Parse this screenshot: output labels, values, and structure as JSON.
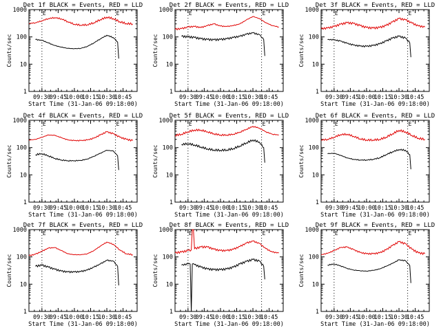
{
  "chart_data": [
    {
      "type": "line",
      "title": "Det 1f BLACK = Events, RED = LLD",
      "xlabel": "Start Time (31-Jan-06 09:18:00)",
      "ylabel": "Counts/sec",
      "y_scale": "log",
      "ylim": [
        1,
        1000
      ],
      "yticks": [
        "1",
        "10",
        "100",
        "1000"
      ],
      "xticks": [
        "09:30",
        "09:45",
        "10:00",
        "10:15",
        "10:30",
        "10:45"
      ],
      "marker_labels": [
        "E",
        "E"
      ],
      "series": [
        {
          "name": "LLD",
          "color": "#e00000",
          "x": [
            "09:18",
            "09:24",
            "09:30",
            "09:36",
            "09:42",
            "09:48",
            "09:54",
            "10:00",
            "10:06",
            "10:12",
            "10:18",
            "10:24",
            "10:30",
            "10:36",
            "10:42",
            "10:48",
            "10:54"
          ],
          "values": [
            310,
            330,
            390,
            470,
            510,
            460,
            360,
            290,
            270,
            280,
            330,
            430,
            530,
            470,
            360,
            310,
            300
          ]
        },
        {
          "name": "Events",
          "color": "#000000",
          "x": [
            "09:24",
            "09:30",
            "09:36",
            "09:42",
            "09:48",
            "09:54",
            "10:00",
            "10:06",
            "10:12",
            "10:18",
            "10:24",
            "10:30",
            "10:36",
            "10:40",
            "10:41"
          ],
          "values": [
            80,
            75,
            60,
            48,
            42,
            38,
            37,
            38,
            45,
            60,
            85,
            115,
            95,
            65,
            16
          ]
        }
      ],
      "vlines": [
        "09:30",
        "10:38"
      ]
    },
    {
      "type": "line",
      "title": "Det 2f BLACK = Events, RED = LLD",
      "xlabel": "Start Time (31-Jan-06 09:18:00)",
      "ylabel": "Counts/sec",
      "y_scale": "log",
      "ylim": [
        1,
        1000
      ],
      "yticks": [
        "1",
        "10",
        "100",
        "1000"
      ],
      "xticks": [
        "09:30",
        "09:45",
        "10:00",
        "10:15",
        "10:30",
        "10:45"
      ],
      "marker_labels": [
        "E",
        "E"
      ],
      "series": [
        {
          "name": "LLD",
          "color": "#e00000",
          "x": [
            "09:18",
            "09:24",
            "09:30",
            "09:36",
            "09:42",
            "09:48",
            "09:54",
            "10:00",
            "10:06",
            "10:12",
            "10:18",
            "10:24",
            "10:30",
            "10:36",
            "10:42",
            "10:48",
            "10:54"
          ],
          "values": [
            190,
            200,
            230,
            240,
            220,
            260,
            300,
            250,
            240,
            260,
            300,
            420,
            560,
            470,
            330,
            260,
            230
          ]
        },
        {
          "name": "Events",
          "color": "#000000",
          "x": [
            "09:24",
            "09:30",
            "09:36",
            "09:42",
            "09:48",
            "09:54",
            "10:00",
            "10:06",
            "10:12",
            "10:18",
            "10:24",
            "10:30",
            "10:36",
            "10:40",
            "10:41"
          ],
          "values": [
            105,
            100,
            95,
            85,
            80,
            78,
            80,
            85,
            95,
            105,
            125,
            140,
            120,
            80,
            20
          ]
        }
      ],
      "vlines": [
        "09:30",
        "10:38"
      ]
    },
    {
      "type": "line",
      "title": "Det 3f BLACK = Events, RED = LLD",
      "xlabel": "Start Time (31-Jan-06 09:18:00)",
      "ylabel": "Counts/sec",
      "y_scale": "log",
      "ylim": [
        1,
        1000
      ],
      "yticks": [
        "1",
        "10",
        "100",
        "1000"
      ],
      "xticks": [
        "09:30",
        "09:45",
        "10:00",
        "10:15",
        "10:30",
        "10:45"
      ],
      "marker_labels": [
        "E",
        "E"
      ],
      "series": [
        {
          "name": "LLD",
          "color": "#e00000",
          "x": [
            "09:18",
            "09:24",
            "09:30",
            "09:36",
            "09:42",
            "09:48",
            "09:54",
            "10:00",
            "10:06",
            "10:12",
            "10:18",
            "10:24",
            "10:30",
            "10:36",
            "10:42",
            "10:48",
            "10:54"
          ],
          "values": [
            200,
            210,
            240,
            290,
            330,
            310,
            260,
            220,
            210,
            220,
            260,
            350,
            470,
            420,
            320,
            250,
            230
          ]
        },
        {
          "name": "Events",
          "color": "#000000",
          "x": [
            "09:24",
            "09:30",
            "09:36",
            "09:42",
            "09:48",
            "09:54",
            "10:00",
            "10:06",
            "10:12",
            "10:18",
            "10:24",
            "10:30",
            "10:36",
            "10:40",
            "10:41"
          ],
          "values": [
            80,
            78,
            70,
            58,
            50,
            46,
            45,
            48,
            55,
            70,
            90,
            105,
            90,
            60,
            18
          ]
        }
      ],
      "vlines": [
        "09:30",
        "10:38"
      ]
    },
    {
      "type": "line",
      "title": "Det 4f BLACK = Events, RED = LLD",
      "xlabel": "Start Time (31-Jan-06 09:18:00)",
      "ylabel": "Counts/sec",
      "y_scale": "log",
      "ylim": [
        1,
        1000
      ],
      "yticks": [
        "1",
        "10",
        "100",
        "1000"
      ],
      "xticks": [
        "09:30",
        "09:45",
        "10:00",
        "10:15",
        "10:30",
        "10:45"
      ],
      "marker_labels": [
        "E",
        "E"
      ],
      "series": [
        {
          "name": "LLD",
          "color": "#e00000",
          "x": [
            "09:18",
            "09:24",
            "09:30",
            "09:36",
            "09:42",
            "09:48",
            "09:54",
            "10:00",
            "10:06",
            "10:12",
            "10:18",
            "10:24",
            "10:30",
            "10:36",
            "10:42",
            "10:48",
            "10:54"
          ],
          "values": [
            190,
            200,
            240,
            290,
            280,
            230,
            190,
            180,
            180,
            190,
            220,
            290,
            380,
            320,
            240,
            200,
            180
          ]
        },
        {
          "name": "Events",
          "color": "#000000",
          "x": [
            "09:24",
            "09:30",
            "09:36",
            "09:42",
            "09:48",
            "09:54",
            "10:00",
            "10:06",
            "10:12",
            "10:18",
            "10:24",
            "10:30",
            "10:36",
            "10:40",
            "10:41"
          ],
          "values": [
            55,
            60,
            50,
            40,
            35,
            33,
            33,
            34,
            38,
            48,
            62,
            80,
            75,
            50,
            15
          ]
        }
      ],
      "vlines": [
        "09:30",
        "10:38"
      ]
    },
    {
      "type": "line",
      "title": "Det 5f BLACK = Events, RED = LLD",
      "xlabel": "Start Time (31-Jan-06 09:18:00)",
      "ylabel": "Counts/sec",
      "y_scale": "log",
      "ylim": [
        1,
        1000
      ],
      "yticks": [
        "1",
        "10",
        "100",
        "1000"
      ],
      "xticks": [
        "09:30",
        "09:45",
        "10:00",
        "10:15",
        "10:30",
        "10:45"
      ],
      "marker_labels": [
        "E",
        "E"
      ],
      "series": [
        {
          "name": "LLD",
          "color": "#e00000",
          "x": [
            "09:18",
            "09:24",
            "09:30",
            "09:36",
            "09:42",
            "09:48",
            "09:54",
            "10:00",
            "10:06",
            "10:12",
            "10:18",
            "10:24",
            "10:30",
            "10:36",
            "10:42",
            "10:48",
            "10:54"
          ],
          "values": [
            280,
            310,
            380,
            440,
            440,
            380,
            320,
            290,
            290,
            310,
            370,
            470,
            600,
            520,
            380,
            310,
            290
          ]
        },
        {
          "name": "Events",
          "color": "#000000",
          "x": [
            "09:24",
            "09:30",
            "09:36",
            "09:42",
            "09:48",
            "09:54",
            "10:00",
            "10:06",
            "10:12",
            "10:18",
            "10:24",
            "10:30",
            "10:36",
            "10:40",
            "10:41"
          ],
          "values": [
            130,
            140,
            125,
            105,
            90,
            82,
            80,
            82,
            92,
            115,
            150,
            190,
            160,
            100,
            28
          ]
        }
      ],
      "vlines": [
        "09:30",
        "10:38"
      ]
    },
    {
      "type": "line",
      "title": "Det 6f BLACK = Events, RED = LLD",
      "xlabel": "Start Time (31-Jan-06 09:18:00)",
      "ylabel": "Counts/sec",
      "y_scale": "log",
      "ylim": [
        1,
        1000
      ],
      "yticks": [
        "1",
        "10",
        "100",
        "1000"
      ],
      "xticks": [
        "09:30",
        "09:45",
        "10:00",
        "10:15",
        "10:30",
        "10:45"
      ],
      "marker_labels": [
        "E",
        "E"
      ],
      "series": [
        {
          "name": "LLD",
          "color": "#e00000",
          "x": [
            "09:18",
            "09:24",
            "09:30",
            "09:36",
            "09:42",
            "09:48",
            "09:54",
            "10:00",
            "10:06",
            "10:12",
            "10:18",
            "10:24",
            "10:30",
            "10:36",
            "10:42",
            "10:48",
            "10:54"
          ],
          "values": [
            190,
            200,
            240,
            300,
            310,
            260,
            210,
            190,
            190,
            200,
            240,
            320,
            430,
            380,
            280,
            220,
            200
          ]
        },
        {
          "name": "Events",
          "color": "#000000",
          "x": [
            "09:24",
            "09:30",
            "09:36",
            "09:42",
            "09:48",
            "09:54",
            "10:00",
            "10:06",
            "10:12",
            "10:18",
            "10:24",
            "10:30",
            "10:36",
            "10:40",
            "10:41"
          ],
          "values": [
            60,
            62,
            52,
            42,
            37,
            35,
            35,
            37,
            42,
            55,
            70,
            85,
            80,
            55,
            16
          ]
        }
      ],
      "vlines": [
        "09:30",
        "10:38"
      ]
    },
    {
      "type": "line",
      "title": "Det 7f BLACK = Events, RED = LLD",
      "xlabel": "Start Time (31-Jan-06 09:18:00)",
      "ylabel": "Counts/sec",
      "y_scale": "log",
      "ylim": [
        1,
        1000
      ],
      "yticks": [
        "1",
        "10",
        "100",
        "1000"
      ],
      "xticks": [
        "09:30",
        "09:45",
        "10:00",
        "10:15",
        "10:30",
        "10:45"
      ],
      "marker_labels": [
        "E",
        "E"
      ],
      "series": [
        {
          "name": "LLD",
          "color": "#e00000",
          "x": [
            "09:18",
            "09:24",
            "09:30",
            "09:36",
            "09:42",
            "09:48",
            "09:54",
            "10:00",
            "10:06",
            "10:12",
            "10:18",
            "10:24",
            "10:30",
            "10:36",
            "10:42",
            "10:48",
            "10:54"
          ],
          "values": [
            110,
            125,
            160,
            210,
            220,
            170,
            130,
            120,
            120,
            130,
            170,
            250,
            350,
            290,
            180,
            130,
            120
          ]
        },
        {
          "name": "Events",
          "color": "#000000",
          "x": [
            "09:24",
            "09:30",
            "09:36",
            "09:42",
            "09:48",
            "09:54",
            "10:00",
            "10:06",
            "10:12",
            "10:18",
            "10:24",
            "10:30",
            "10:36",
            "10:40",
            "10:41"
          ],
          "values": [
            45,
            50,
            42,
            35,
            30,
            28,
            28,
            29,
            33,
            42,
            55,
            75,
            70,
            45,
            9
          ]
        }
      ],
      "vlines": [
        "09:30",
        "10:38"
      ]
    },
    {
      "type": "line",
      "title": "Det 8f BLACK = Events, RED = LLD",
      "xlabel": "Start Time (31-Jan-06 09:18:00)",
      "ylabel": "Counts/sec",
      "y_scale": "log",
      "ylim": [
        1,
        1000
      ],
      "yticks": [
        "1",
        "10",
        "100",
        "1000"
      ],
      "xticks": [
        "09:30",
        "09:45",
        "10:00",
        "10:15",
        "10:30",
        "10:45"
      ],
      "marker_labels": [
        "E",
        "E"
      ],
      "series": [
        {
          "name": "LLD",
          "color": "#e00000",
          "x": [
            "09:18",
            "09:24",
            "09:30",
            "09:33",
            "09:34",
            "09:35",
            "09:36",
            "09:42",
            "09:48",
            "09:54",
            "10:00",
            "10:06",
            "10:12",
            "10:18",
            "10:24",
            "10:30",
            "10:36",
            "10:42",
            "10:48",
            "10:54"
          ],
          "values": [
            140,
            150,
            170,
            180,
            1000,
            1000,
            200,
            230,
            230,
            190,
            170,
            170,
            190,
            240,
            320,
            380,
            310,
            200,
            150,
            140
          ]
        },
        {
          "name": "Events",
          "color": "#000000",
          "x": [
            "09:24",
            "09:30",
            "09:32",
            "09:33",
            "09:34",
            "09:36",
            "09:42",
            "09:48",
            "09:54",
            "10:00",
            "10:06",
            "10:12",
            "10:18",
            "10:24",
            "10:30",
            "10:36",
            "10:40",
            "10:41"
          ],
          "values": [
            50,
            55,
            55,
            1,
            55,
            52,
            42,
            36,
            34,
            34,
            36,
            42,
            55,
            68,
            80,
            70,
            45,
            15
          ]
        }
      ],
      "vlines": [
        "09:30",
        "10:38"
      ]
    },
    {
      "type": "line",
      "title": "Det 9f BLACK = Events, RED = LLD",
      "xlabel": "Start Time (31-Jan-06 09:18:00)",
      "ylabel": "Counts/sec",
      "y_scale": "log",
      "ylim": [
        1,
        1000
      ],
      "yticks": [
        "1",
        "10",
        "100",
        "1000"
      ],
      "xticks": [
        "09:30",
        "09:45",
        "10:00",
        "10:15",
        "10:30",
        "10:45"
      ],
      "marker_labels": [
        "E",
        "E"
      ],
      "series": [
        {
          "name": "LLD",
          "color": "#e00000",
          "x": [
            "09:18",
            "09:24",
            "09:30",
            "09:36",
            "09:42",
            "09:48",
            "09:54",
            "10:00",
            "10:06",
            "10:12",
            "10:18",
            "10:24",
            "10:30",
            "10:36",
            "10:42",
            "10:48",
            "10:54"
          ],
          "values": [
            120,
            135,
            170,
            220,
            230,
            185,
            145,
            130,
            130,
            140,
            180,
            260,
            360,
            300,
            190,
            140,
            130
          ]
        },
        {
          "name": "Events",
          "color": "#000000",
          "x": [
            "09:24",
            "09:30",
            "09:36",
            "09:42",
            "09:48",
            "09:54",
            "10:00",
            "10:06",
            "10:12",
            "10:18",
            "10:24",
            "10:30",
            "10:36",
            "10:40",
            "10:41"
          ],
          "values": [
            50,
            55,
            47,
            38,
            33,
            31,
            30,
            32,
            36,
            45,
            58,
            78,
            72,
            48,
            11
          ]
        }
      ],
      "vlines": [
        "09:30",
        "10:38"
      ]
    }
  ]
}
